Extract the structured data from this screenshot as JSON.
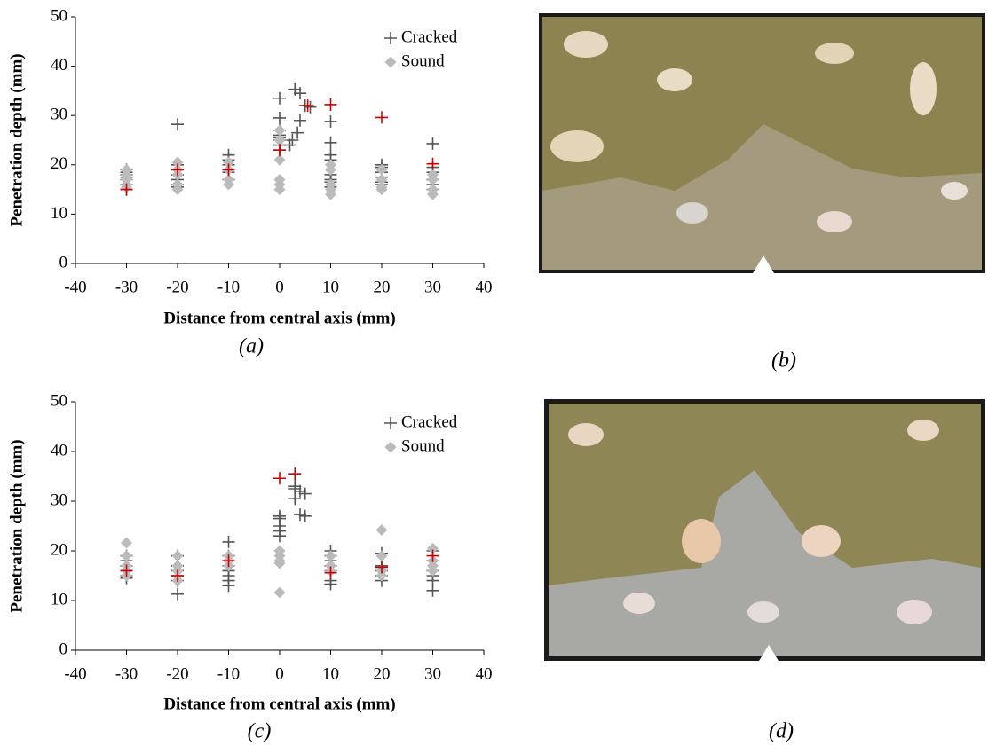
{
  "chart_data": [
    {
      "type": "scatter",
      "caption": "(a)",
      "x_label": "Distance from central axis (mm)",
      "y_label": "Penetration depth (mm)",
      "xlim": [
        -40,
        40
      ],
      "xticks": [
        -40,
        -30,
        -20,
        -10,
        0,
        10,
        20,
        30,
        40
      ],
      "ylim": [
        0,
        50
      ],
      "yticks": [
        0,
        10,
        20,
        30,
        40,
        50
      ],
      "grid": false,
      "legend": "upper right",
      "series": [
        {
          "name": "Cracked",
          "color": "#555555",
          "marker": "plus",
          "x": [
            -30,
            -30,
            -30,
            -30,
            -30,
            -30,
            -30,
            -20,
            -20,
            -20,
            -20,
            -20,
            -20,
            -20,
            -10,
            -10,
            -10,
            -10,
            -10,
            -10,
            0,
            0,
            0,
            0,
            0,
            0,
            0,
            0,
            2,
            2.5,
            3,
            4,
            4,
            3.5,
            5,
            6,
            10,
            10,
            10,
            10,
            10,
            10,
            10,
            10,
            20,
            20,
            20,
            20,
            20,
            20,
            30,
            30,
            30,
            30,
            30,
            30
          ],
          "values": [
            15,
            16,
            17,
            17.5,
            18,
            18.5,
            19,
            28.2,
            20,
            19,
            18,
            17,
            16,
            15.5,
            22,
            21,
            20,
            19,
            18.5,
            17,
            33.5,
            29.5,
            27,
            26,
            25.5,
            25,
            24,
            23,
            24,
            25,
            35.3,
            34.5,
            29,
            26.5,
            32,
            31.7,
            28.8,
            24.5,
            22,
            21,
            18,
            17,
            16.5,
            15.5,
            20,
            19.5,
            18.5,
            17.5,
            16.5,
            16,
            24.3,
            19.5,
            18.5,
            17,
            16,
            15
          ]
        },
        {
          "name": "Sound",
          "color": "#bbbbbb",
          "marker": "diamond",
          "x": [
            -30,
            -30,
            -30,
            -30,
            -30,
            -20,
            -20,
            -20,
            -20,
            -20,
            -10,
            -10,
            -10,
            -10,
            0,
            0,
            0,
            0,
            0,
            0,
            10,
            10,
            10,
            10,
            10,
            20,
            20,
            20,
            20,
            30,
            30,
            30,
            30
          ],
          "values": [
            19,
            18,
            17,
            16,
            15.5,
            20.5,
            19,
            18,
            16,
            15,
            20.5,
            19,
            17,
            16,
            27,
            25,
            21,
            17,
            16,
            15,
            20,
            19,
            16,
            15,
            14,
            19,
            17,
            15.5,
            15,
            18,
            17,
            15,
            14
          ]
        },
        {
          "color": "#cc0000",
          "marker": "plus",
          "x": [
            -30,
            -20,
            -10,
            0,
            5.5,
            10,
            20,
            30
          ],
          "values": [
            15,
            19,
            19,
            23,
            32,
            32.2,
            29.6,
            20.2
          ]
        }
      ]
    },
    {
      "type": "scatter",
      "caption": "(c)",
      "x_label": "Distance from central axis (mm)",
      "y_label": "Penetration depth (mm)",
      "xlim": [
        -40,
        40
      ],
      "xticks": [
        -40,
        -30,
        -20,
        -10,
        0,
        10,
        20,
        30,
        40
      ],
      "ylim": [
        0,
        50
      ],
      "yticks": [
        0,
        10,
        20,
        30,
        40,
        50
      ],
      "grid": false,
      "legend": "upper right",
      "series": [
        {
          "name": "Cracked",
          "color": "#555555",
          "marker": "plus",
          "x": [
            -30,
            -30,
            -30,
            -30,
            -30,
            -30,
            -20,
            -20,
            -20,
            -20,
            -20,
            -20,
            -10,
            -10,
            -10,
            -10,
            -10,
            -10,
            -10,
            -10,
            0,
            0,
            0,
            0,
            0,
            3,
            3,
            3,
            4,
            4,
            5,
            5,
            10,
            10,
            10,
            10,
            10,
            10,
            10,
            20,
            20,
            20,
            20,
            20,
            30,
            30,
            30,
            30,
            30,
            30
          ],
          "values": [
            19,
            18,
            17,
            16,
            15,
            14.5,
            19,
            17,
            16,
            15,
            14,
            11.3,
            21.8,
            19,
            18,
            17,
            16,
            15,
            14,
            13,
            27,
            26.5,
            25,
            24,
            23,
            33,
            32.5,
            30.5,
            32,
            27.3,
            31.5,
            27,
            20,
            19,
            18,
            17,
            16,
            14,
            13.3,
            19.5,
            17,
            16,
            15,
            14,
            20,
            18,
            16,
            15,
            14,
            12
          ]
        },
        {
          "name": "Sound",
          "color": "#bbbbbb",
          "marker": "diamond",
          "x": [
            -30,
            -30,
            -30,
            -30,
            -30,
            -20,
            -20,
            -20,
            -20,
            -10,
            -10,
            -10,
            0,
            0,
            0,
            0,
            0,
            10,
            10,
            10,
            20,
            20,
            20,
            20,
            30,
            30,
            30,
            30
          ],
          "values": [
            21.6,
            19,
            17,
            16,
            15,
            19,
            17,
            16,
            14,
            19,
            18,
            17,
            20,
            19,
            18,
            17.5,
            11.6,
            19,
            17,
            16,
            24.2,
            19,
            16,
            15,
            20.5,
            18,
            17,
            16
          ]
        },
        {
          "color": "#cc0000",
          "marker": "plus",
          "x": [
            -30,
            -20,
            -10,
            0,
            3,
            10,
            20,
            30
          ],
          "values": [
            16,
            15,
            18,
            34.6,
            35.5,
            15.6,
            16.7,
            19
          ]
        }
      ]
    }
  ],
  "images": [
    {
      "caption": "(b)"
    },
    {
      "caption": "(d)"
    }
  ]
}
